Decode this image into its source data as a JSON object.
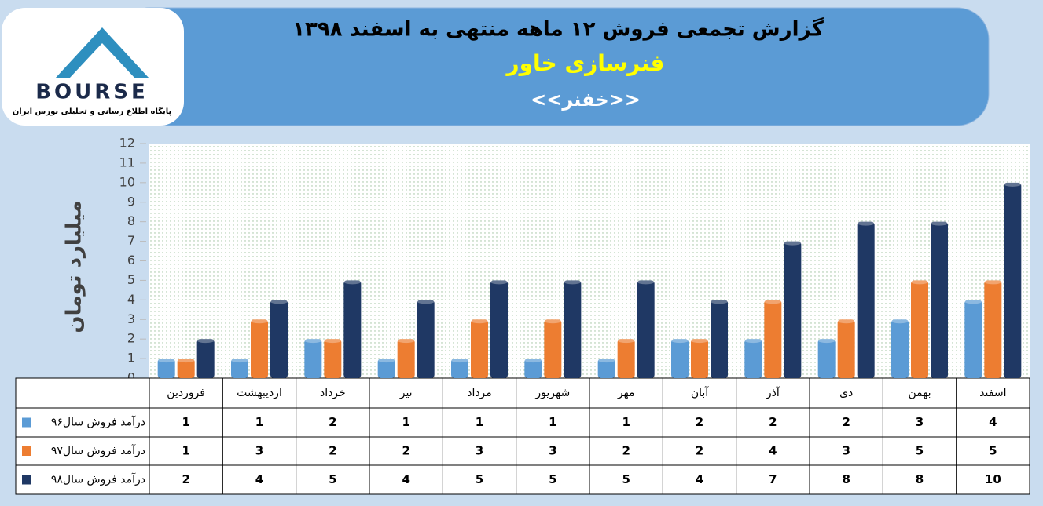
{
  "chart_data": {
    "type": "bar",
    "title": "گزارش تجمعی فروش ۱۲ ماهه منتهی به اسفند ۱۳۹۸",
    "subtitle": "فنرسازی خاور",
    "symbol": "<<خفنر>>",
    "logo": {
      "name": "BOURSE",
      "tagline": "پایگاه اطلاع رسانی و تحلیلی بورس ایران"
    },
    "y_label": "میلیارد تومان",
    "categories": [
      "فروردین",
      "اردیبهشت",
      "خرداد",
      "تیر",
      "مرداد",
      "شهریور",
      "مهر",
      "آبان",
      "آذر",
      "دی",
      "بهمن",
      "اسفند"
    ],
    "series": [
      {
        "name": "درآمد فروش سال۹۶",
        "color": "#5b9bd5",
        "values": [
          1,
          1,
          2,
          1,
          1,
          1,
          1,
          2,
          2,
          2,
          3,
          4
        ]
      },
      {
        "name": "درآمد فروش سال۹۷",
        "color": "#ed7d31",
        "values": [
          1,
          3,
          2,
          2,
          3,
          3,
          2,
          2,
          4,
          3,
          5,
          5
        ]
      },
      {
        "name": "درآمد فروش سال۹۸",
        "color": "#1f3864",
        "values": [
          2,
          4,
          5,
          4,
          5,
          5,
          5,
          4,
          7,
          8,
          8,
          10
        ]
      }
    ],
    "ylim": [
      0,
      12
    ],
    "yticks": [
      0,
      1,
      2,
      3,
      4,
      5,
      6,
      7,
      8,
      9,
      10,
      11,
      12
    ]
  }
}
